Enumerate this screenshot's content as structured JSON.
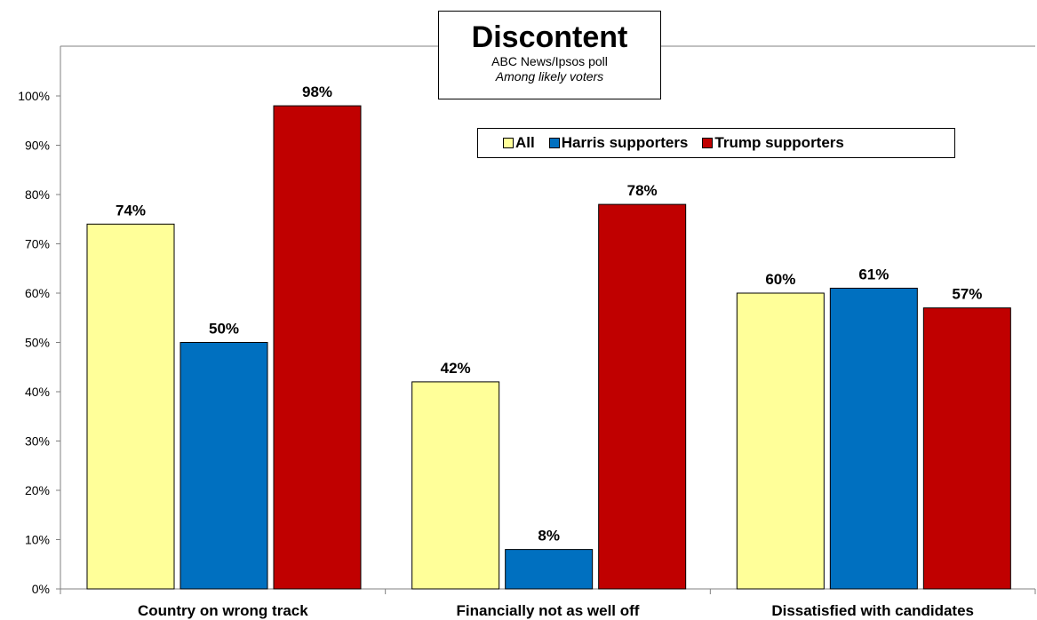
{
  "chart_data": {
    "type": "bar",
    "title": "Discontent",
    "subtitle": "ABC News/Ipsos poll",
    "subtitle2": "Among likely voters",
    "categories": [
      "Country on wrong track",
      "Financially not as well off",
      "Dissatisfied with candidates"
    ],
    "series": [
      {
        "name": "All",
        "color": "#ffff99",
        "values": [
          74,
          42,
          60
        ]
      },
      {
        "name": "Harris supporters",
        "color": "#0070c0",
        "values": [
          50,
          8,
          61
        ]
      },
      {
        "name": "Trump supporters",
        "color": "#c00000",
        "values": [
          98,
          78,
          57
        ]
      }
    ],
    "ylim": [
      0,
      100
    ],
    "yticks": [
      "0%",
      "10%",
      "20%",
      "30%",
      "40%",
      "50%",
      "60%",
      "70%",
      "80%",
      "90%",
      "100%"
    ],
    "value_suffix": "%",
    "legend_position": "top-right",
    "grid": false
  }
}
